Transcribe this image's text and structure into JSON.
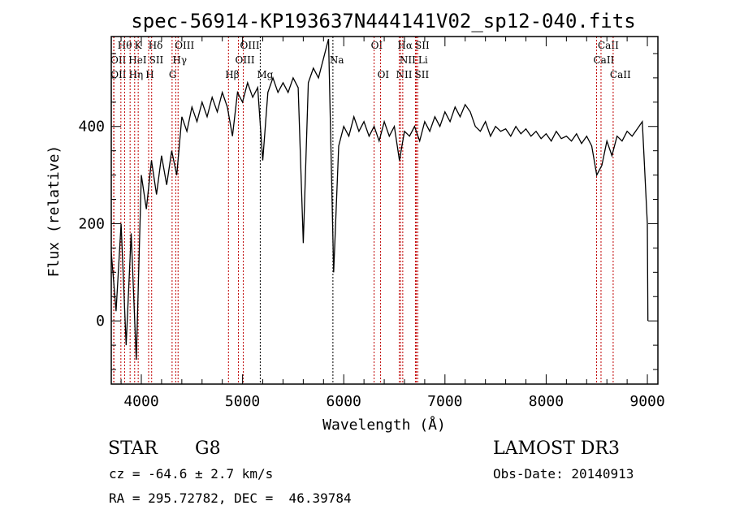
{
  "chart_data": {
    "type": "line",
    "title": "spec-56914-KP193637N444141V02_sp12-040.fits",
    "xlabel": "Wavelength (Å)",
    "ylabel": "Flux (relative)",
    "xlim": [
      3703,
      9104
    ],
    "ylim": [
      -130,
      585
    ],
    "xticks": [
      4000,
      5000,
      6000,
      7000,
      8000,
      9000
    ],
    "yticks": [
      0,
      200,
      400
    ],
    "grid": false,
    "series": [
      {
        "name": "spectrum",
        "x_start": 3700,
        "x_step": 50,
        "values": [
          150,
          20,
          200,
          -50,
          180,
          -80,
          300,
          230,
          330,
          260,
          340,
          280,
          350,
          300,
          420,
          390,
          440,
          410,
          450,
          420,
          460,
          430,
          470,
          440,
          380,
          470,
          450,
          490,
          460,
          480,
          330,
          470,
          500,
          470,
          490,
          470,
          500,
          480,
          160,
          490,
          520,
          500,
          540,
          580,
          100,
          360,
          400,
          380,
          420,
          390,
          410,
          380,
          400,
          370,
          410,
          380,
          400,
          330,
          390,
          380,
          400,
          370,
          410,
          390,
          420,
          400,
          430,
          410,
          440,
          420,
          445,
          430,
          400,
          390,
          410,
          380,
          400,
          390,
          395,
          380,
          400,
          385,
          395,
          380,
          390,
          375,
          385,
          370,
          390,
          375,
          380,
          370,
          385,
          365,
          380,
          360,
          300,
          320,
          370,
          340,
          380,
          370,
          390,
          380,
          395,
          410,
          200
        ],
        "tail": [
          [
            9005,
            0
          ]
        ]
      }
    ],
    "lines": [
      {
        "label": "OII",
        "wave": 3727,
        "row": 1
      },
      {
        "label": "Hθ",
        "wave": 3798,
        "row": 0
      },
      {
        "label": "OII",
        "wave": 3729,
        "row": 2
      },
      {
        "label": "Hη",
        "wave": 3835,
        "row": 2
      },
      {
        "label": "HeI",
        "wave": 3889,
        "row": 1
      },
      {
        "label": "K",
        "wave": 3934,
        "row": 0
      },
      {
        "label": "H",
        "wave": 3969,
        "row": 2
      },
      {
        "label": "SII",
        "wave": 4072,
        "row": 1
      },
      {
        "label": "Hδ",
        "wave": 4102,
        "row": 0
      },
      {
        "label": "G",
        "wave": 4304,
        "row": 2
      },
      {
        "label": "Hγ",
        "wave": 4340,
        "row": 1
      },
      {
        "label": "OIII",
        "wave": 4363,
        "row": 0
      },
      {
        "label": "Hβ",
        "wave": 4861,
        "row": 2
      },
      {
        "label": "OIII",
        "wave": 4959,
        "row": 1
      },
      {
        "label": "OIII",
        "wave": 5007,
        "row": 0
      },
      {
        "label": "Mg",
        "wave": 5175,
        "row": 2
      },
      {
        "label": "Na",
        "wave": 5893,
        "row": 1
      },
      {
        "label": "OI",
        "wave": 6300,
        "row": 0
      },
      {
        "label": "OI",
        "wave": 6364,
        "row": 2
      },
      {
        "label": "NII",
        "wave": 6548,
        "row": 2
      },
      {
        "label": "Hα",
        "wave": 6563,
        "row": 0
      },
      {
        "label": "NII",
        "wave": 6583,
        "row": 1
      },
      {
        "label": "Li",
        "wave": 6708,
        "row": 1
      },
      {
        "label": "SII",
        "wave": 6717,
        "row": 0
      },
      {
        "label": "SII",
        "wave": 6731,
        "row": 2
      },
      {
        "label": "CaII",
        "wave": 8498,
        "row": 1
      },
      {
        "label": "CaII",
        "wave": 8542,
        "row": 0
      },
      {
        "label": "CaII",
        "wave": 8662,
        "row": 2
      }
    ],
    "colors": {
      "line_marker": "#c00000",
      "spectrum": "#000000"
    }
  },
  "info": {
    "class": "STAR",
    "subclass": "G8",
    "survey": "LAMOST DR3",
    "cz": "cz = -64.6 ± 2.7 km/s",
    "obsdate": "Obs-Date: 20140913",
    "radec": "RA = 295.72782, DEC =  46.39784"
  }
}
